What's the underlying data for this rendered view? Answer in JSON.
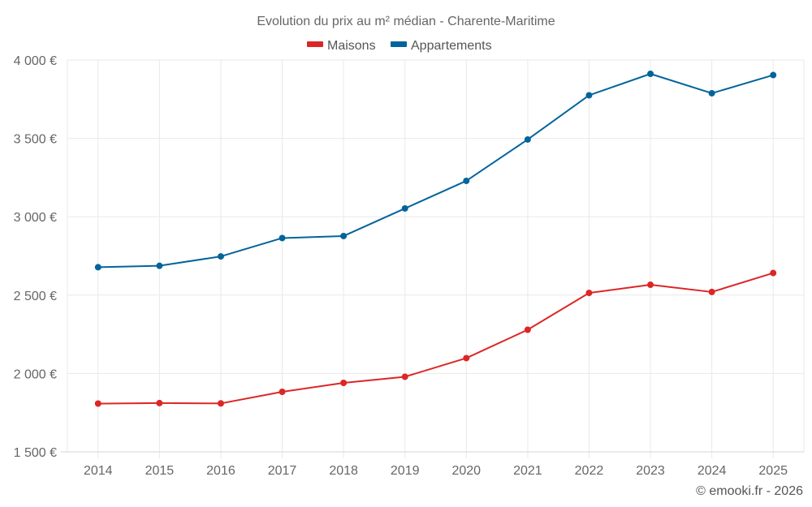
{
  "chart_data": {
    "type": "line",
    "title": "Evolution du prix au m² médian - Charente-Maritime",
    "xlabel": "",
    "ylabel": "",
    "x": [
      "2014",
      "2015",
      "2016",
      "2017",
      "2018",
      "2019",
      "2020",
      "2021",
      "2022",
      "2023",
      "2024",
      "2025"
    ],
    "ylim": [
      1500,
      4000
    ],
    "yticks": [
      1500,
      2000,
      2500,
      3000,
      3500,
      4000
    ],
    "ytick_labels": [
      "1 500 €",
      "2 000 €",
      "2 500 €",
      "3 000 €",
      "3 500 €",
      "4 000 €"
    ],
    "grid": true,
    "legend_position": "top-center",
    "series": [
      {
        "name": "Maisons",
        "color": "#dc2626",
        "values": [
          1808,
          1811,
          1809,
          1883,
          1940,
          1979,
          2098,
          2279,
          2514,
          2566,
          2520,
          2641
        ]
      },
      {
        "name": "Appartements",
        "color": "#03649b",
        "values": [
          2678,
          2687,
          2747,
          2864,
          2877,
          3053,
          3229,
          3493,
          3775,
          3912,
          3788,
          3904
        ]
      }
    ],
    "credit": "© emooki.fr - 2026"
  }
}
